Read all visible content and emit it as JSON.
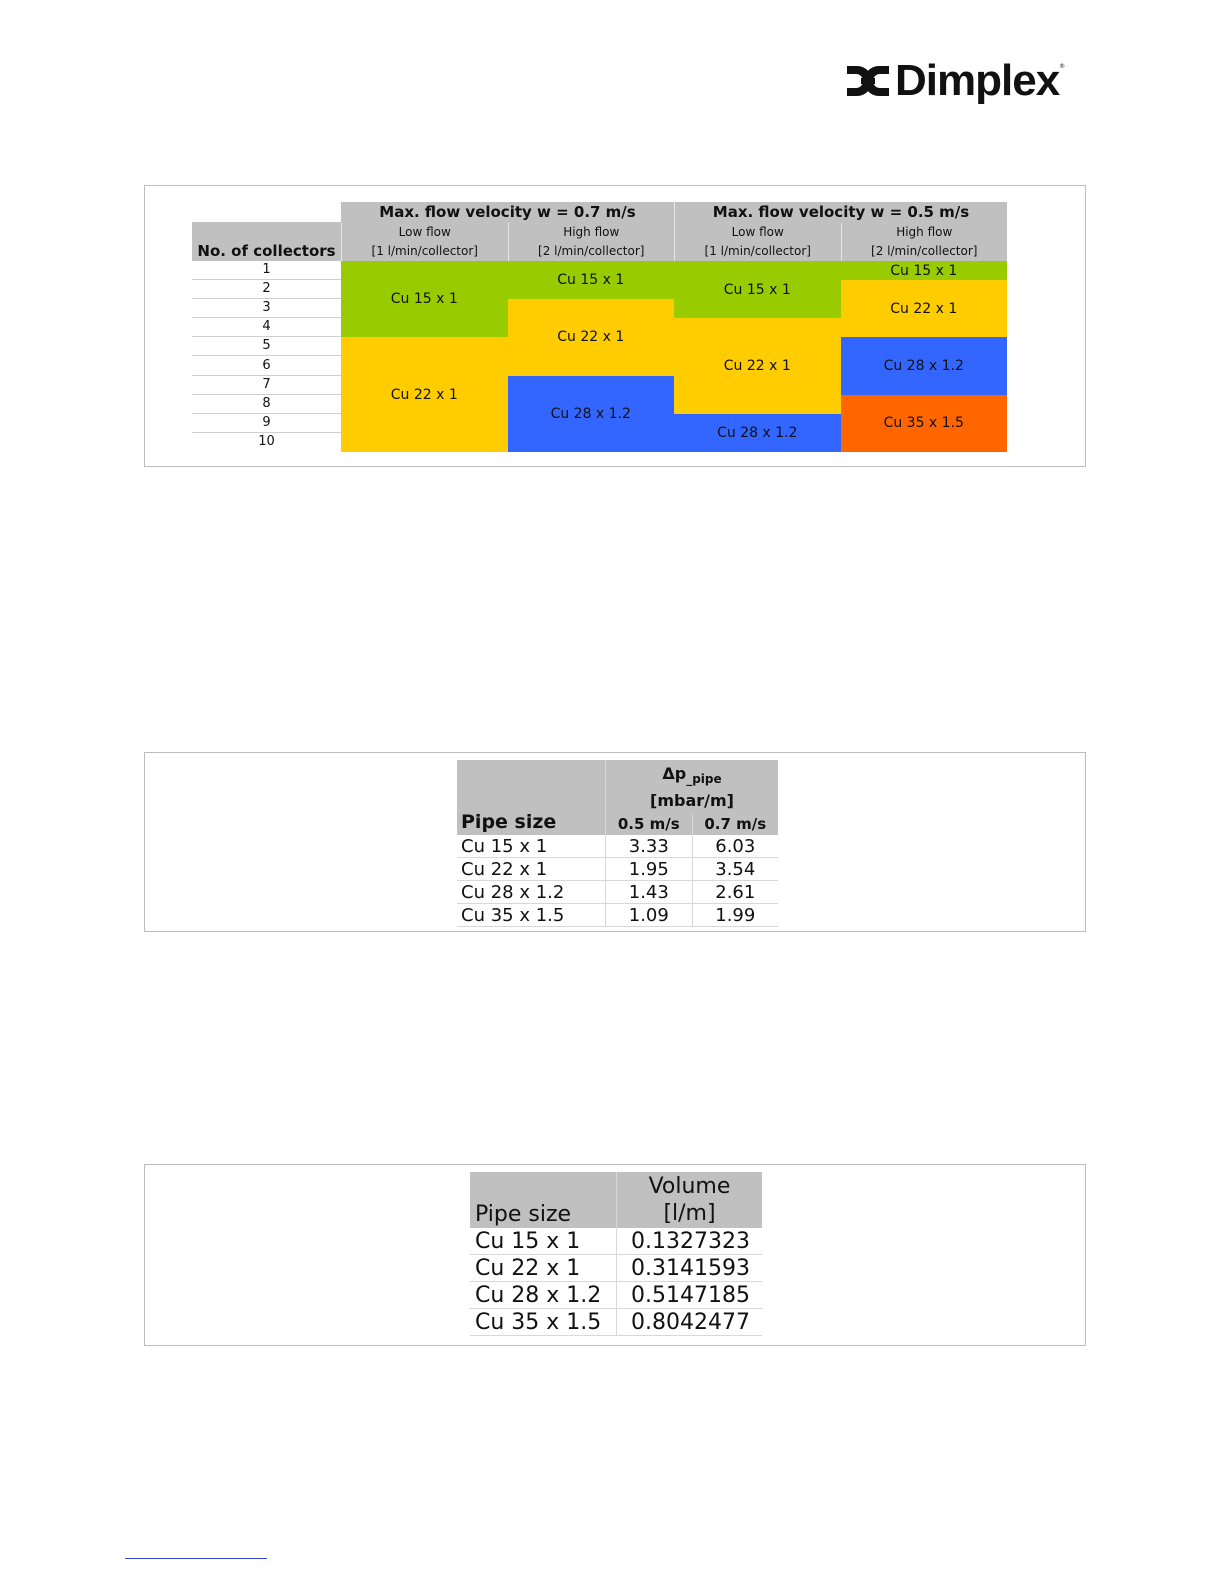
{
  "logo": {
    "brand": "Dimplex",
    "trademark": "®"
  },
  "table1": {
    "row_header": "No. of collectors",
    "groups": [
      {
        "title": "Max. flow velocity w = 0.7 m/s",
        "cols": [
          {
            "line1": "Low flow",
            "line2": "[1 l/min/collector]"
          },
          {
            "line1": "High flow",
            "line2": "[2 l/min/collector]"
          }
        ]
      },
      {
        "title": "Max. flow velocity w = 0.5 m/s",
        "cols": [
          {
            "line1": "Low flow",
            "line2": "[1 l/min/collector]"
          },
          {
            "line1": "High flow",
            "line2": "[2 l/min/collector]"
          }
        ]
      }
    ],
    "rows": [
      "1",
      "2",
      "3",
      "4",
      "5",
      "6",
      "7",
      "8",
      "9",
      "10"
    ],
    "blocks": [
      [
        {
          "label": "Cu 15 x 1",
          "from": 1,
          "to": 4,
          "color": "#99cc00"
        },
        {
          "label": "Cu 22 x 1",
          "from": 5,
          "to": 10,
          "color": "#ffcc00"
        }
      ],
      [
        {
          "label": "Cu 15 x 1",
          "from": 1,
          "to": 2,
          "color": "#99cc00"
        },
        {
          "label": "Cu 22 x 1",
          "from": 3,
          "to": 6,
          "color": "#ffcc00"
        },
        {
          "label": "Cu 28 x 1.2",
          "from": 7,
          "to": 10,
          "color": "#3366ff"
        }
      ],
      [
        {
          "label": "Cu 15 x 1",
          "from": 1,
          "to": 3,
          "color": "#99cc00"
        },
        {
          "label": "Cu 22 x 1",
          "from": 4,
          "to": 8,
          "color": "#ffcc00"
        },
        {
          "label": "Cu 28 x 1.2",
          "from": 9,
          "to": 10,
          "color": "#3366ff"
        }
      ],
      [
        {
          "label": "Cu 15 x 1",
          "from": 1,
          "to": 1,
          "color": "#99cc00"
        },
        {
          "label": "Cu 22 x 1",
          "from": 2,
          "to": 4,
          "color": "#ffcc00"
        },
        {
          "label": "Cu 28 x 1.2",
          "from": 5,
          "to": 7,
          "color": "#3366ff"
        },
        {
          "label": "Cu 35 x 1.5",
          "from": 8,
          "to": 10,
          "color": "#ff6600"
        }
      ]
    ]
  },
  "table2": {
    "col_pipe": "Pipe size",
    "dp_symbol": "Δp",
    "dp_sub": "_pipe",
    "dp_unit": "[mbar/m]",
    "v1": "0.5 m/s",
    "v2": "0.7 m/s",
    "rows": [
      {
        "pipe": "Cu 15 x 1",
        "a": "3.33",
        "b": "6.03"
      },
      {
        "pipe": "Cu 22 x 1",
        "a": "1.95",
        "b": "3.54"
      },
      {
        "pipe": "Cu 28 x 1.2",
        "a": "1.43",
        "b": "2.61"
      },
      {
        "pipe": "Cu 35 x 1.5",
        "a": "1.09",
        "b": "1.99"
      }
    ]
  },
  "table3": {
    "col_pipe": "Pipe size",
    "vol_title": "Volume",
    "vol_unit": "[l/m]",
    "rows": [
      {
        "pipe": "Cu 15 x 1",
        "vol": "0.1327323"
      },
      {
        "pipe": "Cu 22 x 1",
        "vol": "0.3141593"
      },
      {
        "pipe": "Cu 28 x 1.2",
        "vol": "0.5147185"
      },
      {
        "pipe": "Cu 35 x 1.5",
        "vol": "0.8042477"
      }
    ]
  }
}
